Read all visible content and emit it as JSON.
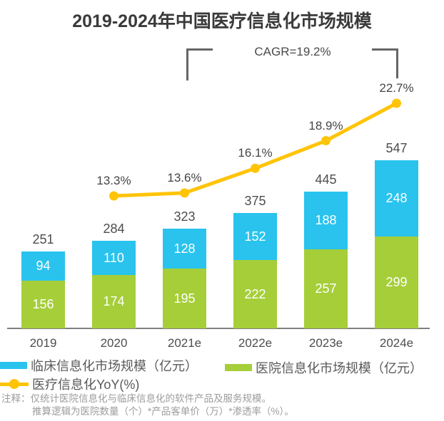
{
  "title": "2019-2024年中国医疗信息化市场规模",
  "cagr_label": "CAGR=19.2%",
  "colors": {
    "clinical_blue": "#29C3EE",
    "hospital_green": "#A5CE39",
    "yoy_yellow": "#FFC408",
    "axis_gray": "#808080",
    "bracket_gray": "#666666",
    "title_gray": "#3A3A3A"
  },
  "legend": [
    {
      "label": "临床信息化市场规模（亿元）",
      "marker": "blue-square"
    },
    {
      "label": "医院信息化市场规模（亿元）",
      "marker": "green-square"
    },
    {
      "label": "医疗信息化YoY(%)",
      "marker": "yellow-line-dot"
    }
  ],
  "footnote": {
    "line1": "注释：仅统计医院信息化与临床信息化的软件产品及服务规模。",
    "line2": "推算逻辑为医院数量（个）*产品客单价（万）*渗透率（%）。"
  },
  "chart_data": {
    "type": "bar",
    "subtype": "stacked-bar-with-line-overlay",
    "title": "2019-2024年中国医疗信息化市场规模",
    "categories": [
      "2019",
      "2020",
      "2021e",
      "2022e",
      "2023e",
      "2024e"
    ],
    "series": [
      {
        "name": "医院信息化市场规模（亿元）",
        "color_key": "hospital_green",
        "values": [
          156,
          174,
          195,
          222,
          257,
          299
        ]
      },
      {
        "name": "临床信息化市场规模（亿元）",
        "color_key": "clinical_blue",
        "values": [
          94,
          110,
          128,
          152,
          188,
          248
        ]
      }
    ],
    "totals": [
      251,
      284,
      323,
      375,
      445,
      547
    ],
    "line_series": {
      "name": "医疗信息化YoY(%)",
      "categories": [
        "2020",
        "2021e",
        "2022e",
        "2023e",
        "2024e"
      ],
      "values_pct": [
        13.3,
        13.6,
        16.1,
        18.9,
        22.7
      ],
      "labels": [
        "13.3%",
        "13.6%",
        "16.1%",
        "18.9%",
        "22.7%"
      ]
    },
    "annotations": [
      "CAGR=19.2%"
    ],
    "legend_position": "bottom",
    "grid": false,
    "ylim_bars": [
      0,
      580
    ],
    "unit": "亿元"
  }
}
